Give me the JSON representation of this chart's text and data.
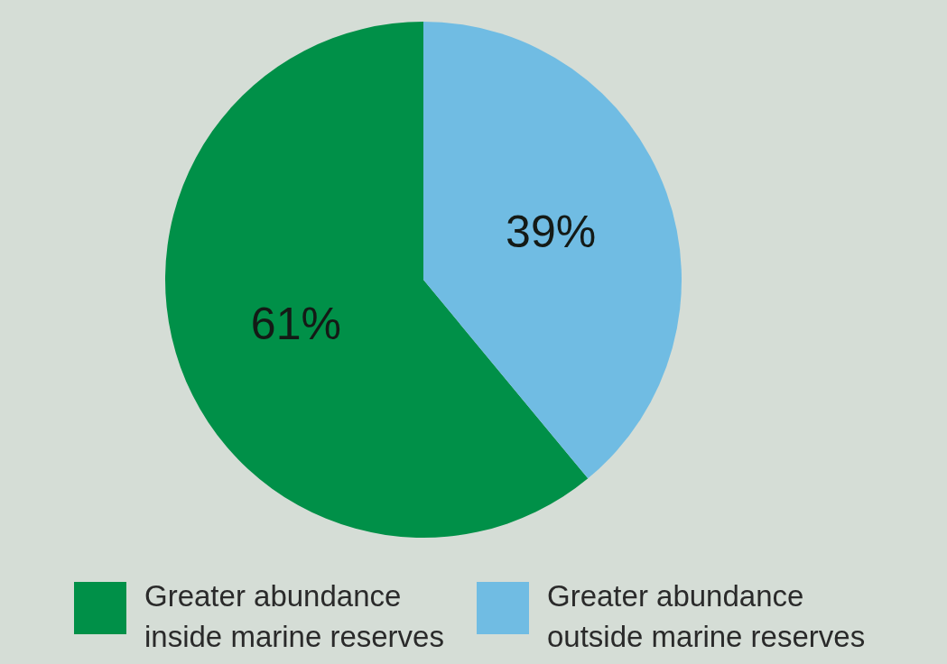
{
  "chart_data": {
    "type": "pie",
    "categories": [
      "Greater abundance inside marine reserves",
      "Greater abundance outside marine reserves"
    ],
    "values": [
      61,
      39
    ],
    "colors": [
      "#009048",
      "#70bce3"
    ],
    "value_labels": [
      "61%",
      "39%"
    ],
    "legend": "bottom"
  }
}
